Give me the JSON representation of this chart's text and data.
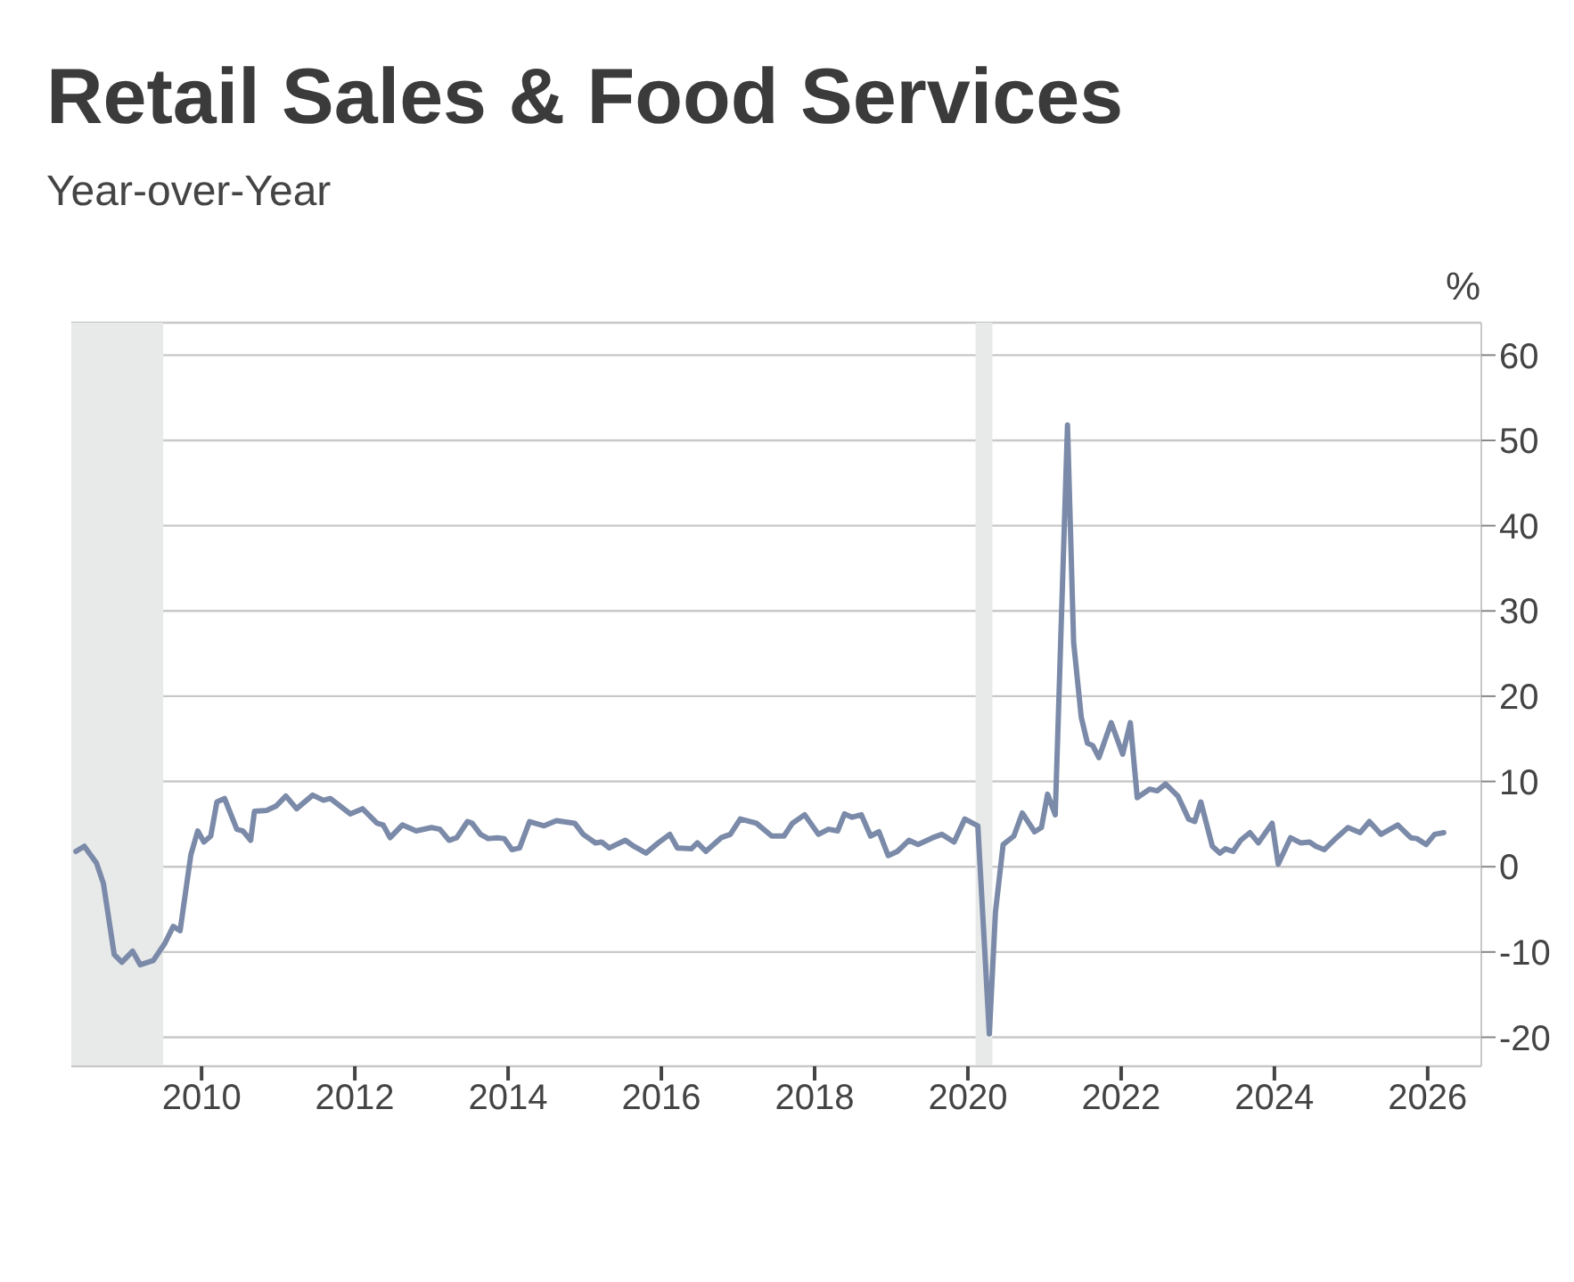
{
  "chart_data": {
    "type": "line",
    "title": "Retail Sales & Food Services",
    "subtitle": "Year-over-Year",
    "ylabel": "%",
    "x": [
      2008.36,
      2008.47,
      2008.63,
      2008.72,
      2008.86,
      2008.96,
      2009.1,
      2009.2,
      2009.37,
      2009.52,
      2009.63,
      2009.72,
      2009.86,
      2009.95,
      2010.03,
      2010.12,
      2010.2,
      2010.3,
      2010.46,
      2010.54,
      2010.64,
      2010.69,
      2010.85,
      2010.97,
      2011.1,
      2011.24,
      2011.45,
      2011.59,
      2011.68,
      2011.94,
      2012.1,
      2012.29,
      2012.37,
      2012.46,
      2012.62,
      2012.8,
      2013.0,
      2013.11,
      2013.23,
      2013.33,
      2013.47,
      2013.53,
      2013.64,
      2013.74,
      2013.86,
      2013.95,
      2014.05,
      2014.15,
      2014.28,
      2014.47,
      2014.63,
      2014.87,
      2014.98,
      2015.14,
      2015.22,
      2015.32,
      2015.53,
      2015.64,
      2015.8,
      2015.96,
      2016.11,
      2016.21,
      2016.39,
      2016.47,
      2016.58,
      2016.78,
      2016.9,
      2017.03,
      2017.24,
      2017.44,
      2017.6,
      2017.71,
      2017.87,
      2018.05,
      2018.18,
      2018.3,
      2018.39,
      2018.49,
      2018.61,
      2018.73,
      2018.84,
      2018.96,
      2019.08,
      2019.23,
      2019.35,
      2019.54,
      2019.66,
      2019.82,
      2019.96,
      2020.13,
      2020.28,
      2020.36,
      2020.46,
      2020.6,
      2020.71,
      2020.87,
      2020.96,
      2021.04,
      2021.14,
      2021.3,
      2021.38,
      2021.48,
      2021.56,
      2021.63,
      2021.71,
      2021.87,
      2022.02,
      2022.12,
      2022.21,
      2022.37,
      2022.47,
      2022.58,
      2022.74,
      2022.88,
      2022.96,
      2023.04,
      2023.19,
      2023.29,
      2023.36,
      2023.46,
      2023.56,
      2023.68,
      2023.79,
      2023.97,
      2024.05,
      2024.21,
      2024.34,
      2024.46,
      2024.54,
      2024.65,
      2024.81,
      2024.96,
      2025.12,
      2025.24,
      2025.39,
      2025.51,
      2025.61,
      2025.78,
      2025.86,
      2025.98,
      2026.09,
      2026.21
    ],
    "series": [
      {
        "color": "#7a8aa8",
        "values": [
          1.8,
          2.4,
          0.4,
          -2.0,
          -10.3,
          -11.2,
          -9.9,
          -11.5,
          -11.0,
          -9.0,
          -7.0,
          -7.5,
          1.4,
          4.2,
          2.9,
          3.6,
          7.6,
          8.0,
          4.4,
          4.2,
          3.1,
          6.5,
          6.6,
          7.1,
          8.3,
          6.8,
          8.4,
          7.8,
          8.0,
          6.2,
          6.8,
          5.1,
          4.9,
          3.4,
          4.9,
          4.2,
          4.6,
          4.4,
          3.1,
          3.4,
          5.3,
          5.1,
          3.8,
          3.3,
          3.4,
          3.3,
          2.0,
          2.2,
          5.3,
          4.8,
          5.4,
          5.1,
          3.8,
          2.8,
          2.9,
          2.2,
          3.1,
          2.4,
          1.6,
          2.8,
          3.8,
          2.2,
          2.1,
          2.8,
          1.8,
          3.4,
          3.8,
          5.6,
          5.1,
          3.6,
          3.6,
          5.1,
          6.1,
          3.8,
          4.4,
          4.2,
          6.2,
          5.8,
          6.1,
          3.6,
          4.1,
          1.3,
          1.8,
          3.1,
          2.6,
          3.4,
          3.8,
          2.9,
          5.6,
          4.8,
          -19.6,
          -5.3,
          2.6,
          3.6,
          6.3,
          4.1,
          4.6,
          8.5,
          6.1,
          51.8,
          26.3,
          17.5,
          14.5,
          14.2,
          12.8,
          16.9,
          13.2,
          16.9,
          8.1,
          9.1,
          8.9,
          9.7,
          8.3,
          5.6,
          5.3,
          7.6,
          2.4,
          1.6,
          2.1,
          1.8,
          3.1,
          4.0,
          2.8,
          5.1,
          0.3,
          3.4,
          2.8,
          2.9,
          2.4,
          2.0,
          3.4,
          4.6,
          4.0,
          5.3,
          3.8,
          4.4,
          4.9,
          3.4,
          3.3,
          2.6,
          3.8,
          4.0
        ]
      }
    ],
    "xlim": [
      2008.3,
      2026.7
    ],
    "xticks": [
      2010,
      2012,
      2014,
      2016,
      2018,
      2020,
      2022,
      2024,
      2026
    ],
    "ylim": [
      -23.4,
      63.8
    ],
    "yticks": [
      -20,
      -10,
      0,
      10,
      20,
      30,
      40,
      50,
      60
    ],
    "grid": "y",
    "bands": [
      {
        "axis": "x",
        "from": 2008.3,
        "to": 2009.5,
        "color": "#e8eaea"
      },
      {
        "axis": "x",
        "from": 2020.1,
        "to": 2020.32,
        "color": "#e8eaea"
      }
    ]
  }
}
